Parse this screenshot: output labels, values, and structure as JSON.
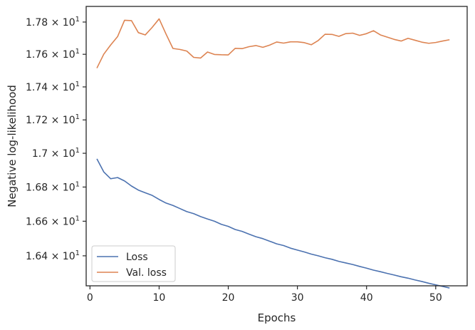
{
  "chart_data": {
    "type": "line",
    "title": "",
    "xlabel": "Epochs",
    "ylabel": "Negative log-likelihood",
    "xlim": [
      -0.55,
      54.55
    ],
    "ylim": [
      16.2285,
      17.8978
    ],
    "y_scale": "log",
    "grid": false,
    "legend_position": "lower-left",
    "x_ticks": [
      0,
      10,
      20,
      30,
      40,
      50
    ],
    "y_ticks": [
      {
        "value": 16.4,
        "mantissa": "1.64",
        "base": "10",
        "exp": "1"
      },
      {
        "value": 16.6,
        "mantissa": "1.66",
        "base": "10",
        "exp": "1"
      },
      {
        "value": 16.8,
        "mantissa": "1.68",
        "base": "10",
        "exp": "1"
      },
      {
        "value": 17.0,
        "mantissa": "1.7",
        "base": "10",
        "exp": "1"
      },
      {
        "value": 17.2,
        "mantissa": "1.72",
        "base": "10",
        "exp": "1"
      },
      {
        "value": 17.4,
        "mantissa": "1.74",
        "base": "10",
        "exp": "1"
      },
      {
        "value": 17.6,
        "mantissa": "1.76",
        "base": "10",
        "exp": "1"
      },
      {
        "value": 17.8,
        "mantissa": "1.78",
        "base": "10",
        "exp": "1"
      }
    ],
    "x": [
      1,
      2,
      3,
      4,
      5,
      6,
      7,
      8,
      9,
      10,
      11,
      12,
      13,
      14,
      15,
      16,
      17,
      18,
      19,
      20,
      21,
      22,
      23,
      24,
      25,
      26,
      27,
      28,
      29,
      30,
      31,
      32,
      33,
      34,
      35,
      36,
      37,
      38,
      39,
      40,
      41,
      42,
      43,
      44,
      45,
      46,
      47,
      48,
      49,
      50,
      51,
      52
    ],
    "series": [
      {
        "name": "Loss",
        "color": "#4c72b0",
        "values": [
          16.967,
          16.889,
          16.849,
          16.856,
          16.836,
          16.806,
          16.782,
          16.766,
          16.751,
          16.727,
          16.706,
          16.692,
          16.674,
          16.656,
          16.644,
          16.627,
          16.613,
          16.6,
          16.582,
          16.57,
          16.552,
          16.541,
          16.525,
          16.51,
          16.499,
          16.484,
          16.469,
          16.459,
          16.444,
          16.433,
          16.422,
          16.41,
          16.4,
          16.389,
          16.38,
          16.368,
          16.359,
          16.35,
          16.339,
          16.329,
          16.318,
          16.309,
          16.299,
          16.29,
          16.28,
          16.272,
          16.262,
          16.253,
          16.243,
          16.234,
          16.225,
          16.216
        ]
      },
      {
        "name": "Val. loss",
        "color": "#dd8452",
        "values": [
          17.515,
          17.601,
          17.658,
          17.71,
          17.811,
          17.809,
          17.734,
          17.72,
          17.767,
          17.82,
          17.725,
          17.636,
          17.63,
          17.62,
          17.581,
          17.577,
          17.614,
          17.599,
          17.597,
          17.596,
          17.637,
          17.635,
          17.647,
          17.654,
          17.643,
          17.657,
          17.676,
          17.669,
          17.677,
          17.677,
          17.672,
          17.659,
          17.685,
          17.724,
          17.723,
          17.711,
          17.728,
          17.731,
          17.717,
          17.728,
          17.746,
          17.72,
          17.706,
          17.692,
          17.682,
          17.699,
          17.687,
          17.675,
          17.668,
          17.673,
          17.682,
          17.69
        ]
      }
    ]
  }
}
